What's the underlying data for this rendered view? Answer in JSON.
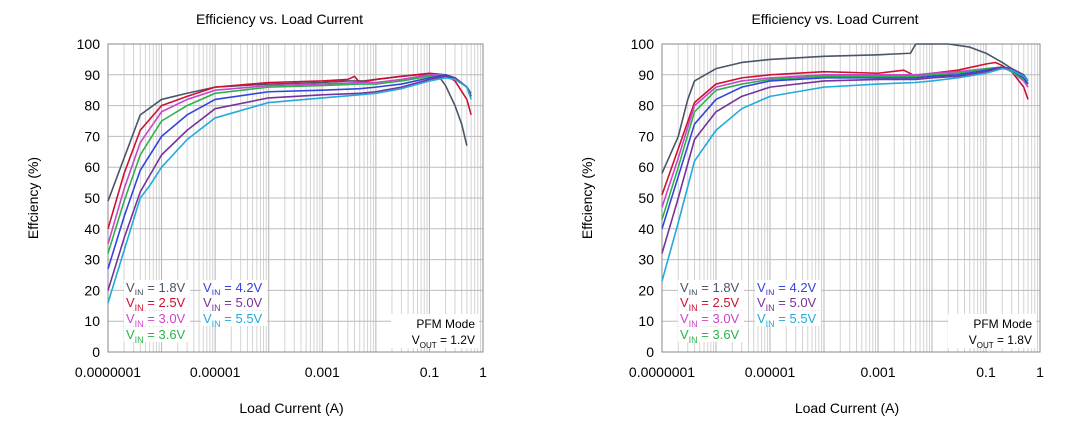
{
  "chart_data": [
    {
      "type": "line",
      "title": "Efficiency vs. Load Current",
      "xlabel": "Load Current (A)",
      "ylabel": "Effciency (%)",
      "xscale": "log",
      "xlim": [
        1e-07,
        1
      ],
      "ylim": [
        0,
        100
      ],
      "xticks": [
        {
          "value": 1e-07,
          "label": "0.0000001"
        },
        {
          "value": 1e-05,
          "label": "0.00001"
        },
        {
          "value": 0.001,
          "label": "0.001"
        },
        {
          "value": 0.1,
          "label": "0.1"
        },
        {
          "value": 1,
          "label": "1"
        }
      ],
      "yticks": [
        0,
        10,
        20,
        30,
        40,
        50,
        60,
        70,
        80,
        90,
        100
      ],
      "grid": true,
      "legend_position": "bottom-left",
      "annotation": {
        "mode": "PFM Mode",
        "vout_prefix": "V",
        "vout_sub": "OUT",
        "vout_value": " = 1.2V"
      },
      "series": [
        {
          "name": "1.8V",
          "color": "#4a5568",
          "x": [
            1e-07,
            2e-07,
            4e-07,
            1e-06,
            3e-06,
            1e-05,
            0.0001,
            0.001,
            0.003,
            0.006,
            0.01,
            0.03,
            0.06,
            0.1,
            0.15,
            0.2,
            0.3,
            0.4,
            0.5
          ],
          "y": [
            49,
            63,
            77,
            82,
            84,
            86,
            87,
            87.5,
            88,
            88,
            88.5,
            89.5,
            90,
            90,
            89.5,
            86.5,
            80,
            74,
            67
          ]
        },
        {
          "name": "2.5V",
          "color": "#cc1133",
          "x": [
            1e-07,
            2e-07,
            4e-07,
            1e-06,
            3e-06,
            1e-05,
            0.0001,
            0.001,
            0.003,
            0.004,
            0.005,
            0.01,
            0.03,
            0.1,
            0.2,
            0.3,
            0.5,
            0.6
          ],
          "y": [
            40,
            58,
            72,
            80,
            83,
            86,
            87.5,
            88,
            88.5,
            89.5,
            87.5,
            88.5,
            89.5,
            90.5,
            90,
            88,
            82,
            77
          ]
        },
        {
          "name": "3.0V",
          "color": "#cc44cc",
          "x": [
            1e-07,
            2e-07,
            4e-07,
            1e-06,
            3e-06,
            1e-05,
            0.0001,
            0.001,
            0.005,
            0.01,
            0.03,
            0.1,
            0.2,
            0.3,
            0.5,
            0.6
          ],
          "y": [
            35,
            53,
            68,
            78,
            82,
            85,
            86.5,
            87,
            87.5,
            87.5,
            88.5,
            90,
            90,
            89,
            86,
            84
          ]
        },
        {
          "name": "3.6V",
          "color": "#2bb34a",
          "x": [
            1e-07,
            2e-07,
            4e-07,
            1e-06,
            3e-06,
            1e-05,
            0.0001,
            0.001,
            0.005,
            0.01,
            0.03,
            0.1,
            0.2,
            0.3,
            0.5,
            0.6
          ],
          "y": [
            32,
            49,
            64,
            75,
            80,
            84,
            86,
            86.5,
            87,
            87,
            88,
            89.5,
            90,
            89,
            86,
            84
          ]
        },
        {
          "name": "4.2V",
          "color": "#3344dd",
          "x": [
            1e-07,
            2e-07,
            4e-07,
            1e-06,
            3e-06,
            1e-05,
            0.0001,
            0.001,
            0.005,
            0.01,
            0.03,
            0.1,
            0.2,
            0.3,
            0.5,
            0.6
          ],
          "y": [
            27,
            44,
            59,
            70,
            77,
            82,
            84.5,
            85,
            85.5,
            86,
            87,
            89,
            90,
            89,
            86,
            83
          ]
        },
        {
          "name": "5.0V",
          "color": "#773399",
          "x": [
            1e-07,
            2e-07,
            4e-07,
            1e-06,
            3e-06,
            1e-05,
            0.0001,
            0.001,
            0.005,
            0.01,
            0.03,
            0.1,
            0.2,
            0.3,
            0.5,
            0.6
          ],
          "y": [
            20,
            37,
            52,
            64,
            72,
            79,
            82.5,
            83.5,
            84,
            84.5,
            86,
            88.5,
            89.5,
            89,
            86,
            83
          ]
        },
        {
          "name": "5.5V",
          "color": "#22aadd",
          "x": [
            1e-07,
            2e-07,
            4e-07,
            6e-07,
            1e-06,
            3e-06,
            1e-05,
            0.0001,
            0.001,
            0.005,
            0.01,
            0.03,
            0.1,
            0.2,
            0.3,
            0.5,
            0.6
          ],
          "y": [
            16,
            33,
            50,
            54,
            60,
            69,
            76,
            81,
            82.5,
            83.5,
            84,
            85.5,
            88,
            89,
            88.5,
            86,
            82
          ]
        }
      ]
    },
    {
      "type": "line",
      "title": "Efficiency vs. Load Current",
      "xlabel": "Load Current (A)",
      "ylabel": "Effciency (%)",
      "xscale": "log",
      "xlim": [
        1e-07,
        1
      ],
      "ylim": [
        0,
        100
      ],
      "xticks": [
        {
          "value": 1e-07,
          "label": "0.0000001"
        },
        {
          "value": 1e-05,
          "label": "0.00001"
        },
        {
          "value": 0.001,
          "label": "0.001"
        },
        {
          "value": 0.1,
          "label": "0.1"
        },
        {
          "value": 1,
          "label": "1"
        }
      ],
      "yticks": [
        0,
        10,
        20,
        30,
        40,
        50,
        60,
        70,
        80,
        90,
        100
      ],
      "grid": true,
      "legend_position": "bottom-left",
      "annotation": {
        "mode": "PFM Mode",
        "vout_prefix": "V",
        "vout_sub": "OUT",
        "vout_value": " = 1.8V"
      },
      "series": [
        {
          "name": "1.8V",
          "color": "#4a5568",
          "x": [
            1e-07,
            2e-07,
            3e-07,
            4e-07,
            1e-06,
            3e-06,
            1e-05,
            0.0001,
            0.001,
            0.004,
            0.005,
            0.02,
            0.05,
            0.1,
            0.2,
            0.3,
            0.5,
            0.6
          ],
          "y": [
            58,
            70,
            82,
            88,
            92,
            94,
            95,
            96,
            96.5,
            97,
            100,
            100,
            99,
            97,
            94,
            92,
            90,
            88
          ]
        },
        {
          "name": "2.5V",
          "color": "#cc1133",
          "x": [
            1e-07,
            2e-07,
            4e-07,
            1e-06,
            3e-06,
            1e-05,
            0.0001,
            0.001,
            0.003,
            0.005,
            0.01,
            0.03,
            0.1,
            0.15,
            0.2,
            0.3,
            0.5,
            0.6
          ],
          "y": [
            51,
            66,
            81,
            87,
            89,
            90,
            91,
            90.5,
            91.5,
            89.5,
            90.5,
            91.5,
            93.5,
            94,
            93,
            91,
            86,
            82
          ]
        },
        {
          "name": "3.0V",
          "color": "#cc44cc",
          "x": [
            1e-07,
            2e-07,
            4e-07,
            1e-06,
            3e-06,
            1e-05,
            0.0001,
            0.001,
            0.005,
            0.01,
            0.03,
            0.1,
            0.2,
            0.3,
            0.5,
            0.6
          ],
          "y": [
            47,
            63,
            80,
            86,
            88,
            89,
            90,
            90,
            90,
            90.5,
            91,
            92,
            92.5,
            91,
            88,
            86
          ]
        },
        {
          "name": "3.6V",
          "color": "#2bb34a",
          "x": [
            1e-07,
            2e-07,
            4e-07,
            1e-06,
            3e-06,
            1e-05,
            0.0001,
            0.001,
            0.005,
            0.01,
            0.03,
            0.1,
            0.2,
            0.3,
            0.5,
            0.6
          ],
          "y": [
            43,
            60,
            78,
            85,
            87,
            88.5,
            89.5,
            89.5,
            89.5,
            90,
            90.5,
            92,
            92.5,
            91,
            88.5,
            87
          ]
        },
        {
          "name": "4.2V",
          "color": "#3344dd",
          "x": [
            1e-07,
            2e-07,
            4e-07,
            1e-06,
            3e-06,
            1e-05,
            0.0001,
            0.001,
            0.005,
            0.01,
            0.03,
            0.1,
            0.2,
            0.3,
            0.5,
            0.6
          ],
          "y": [
            40,
            57,
            74,
            82,
            86,
            88,
            89,
            89,
            89,
            89.5,
            90,
            91.5,
            92.5,
            91.5,
            89,
            87
          ]
        },
        {
          "name": "5.0V",
          "color": "#773399",
          "x": [
            1e-07,
            2e-07,
            4e-07,
            1e-06,
            3e-06,
            1e-05,
            0.0001,
            0.001,
            0.005,
            0.01,
            0.03,
            0.1,
            0.2,
            0.3,
            0.5,
            0.6
          ],
          "y": [
            32,
            50,
            69,
            78,
            83,
            86,
            88,
            88.5,
            88.5,
            89,
            89.5,
            91,
            92.5,
            92,
            89.5,
            88
          ]
        },
        {
          "name": "5.5V",
          "color": "#22aadd",
          "x": [
            1e-07,
            2e-07,
            4e-07,
            1e-06,
            3e-06,
            1e-05,
            0.0001,
            0.001,
            0.005,
            0.01,
            0.03,
            0.1,
            0.2,
            0.3,
            0.5,
            0.6
          ],
          "y": [
            23,
            42,
            62,
            72,
            79,
            83,
            86,
            87,
            87.5,
            88,
            89,
            90.5,
            92,
            91.5,
            89.5,
            88
          ]
        }
      ]
    }
  ]
}
